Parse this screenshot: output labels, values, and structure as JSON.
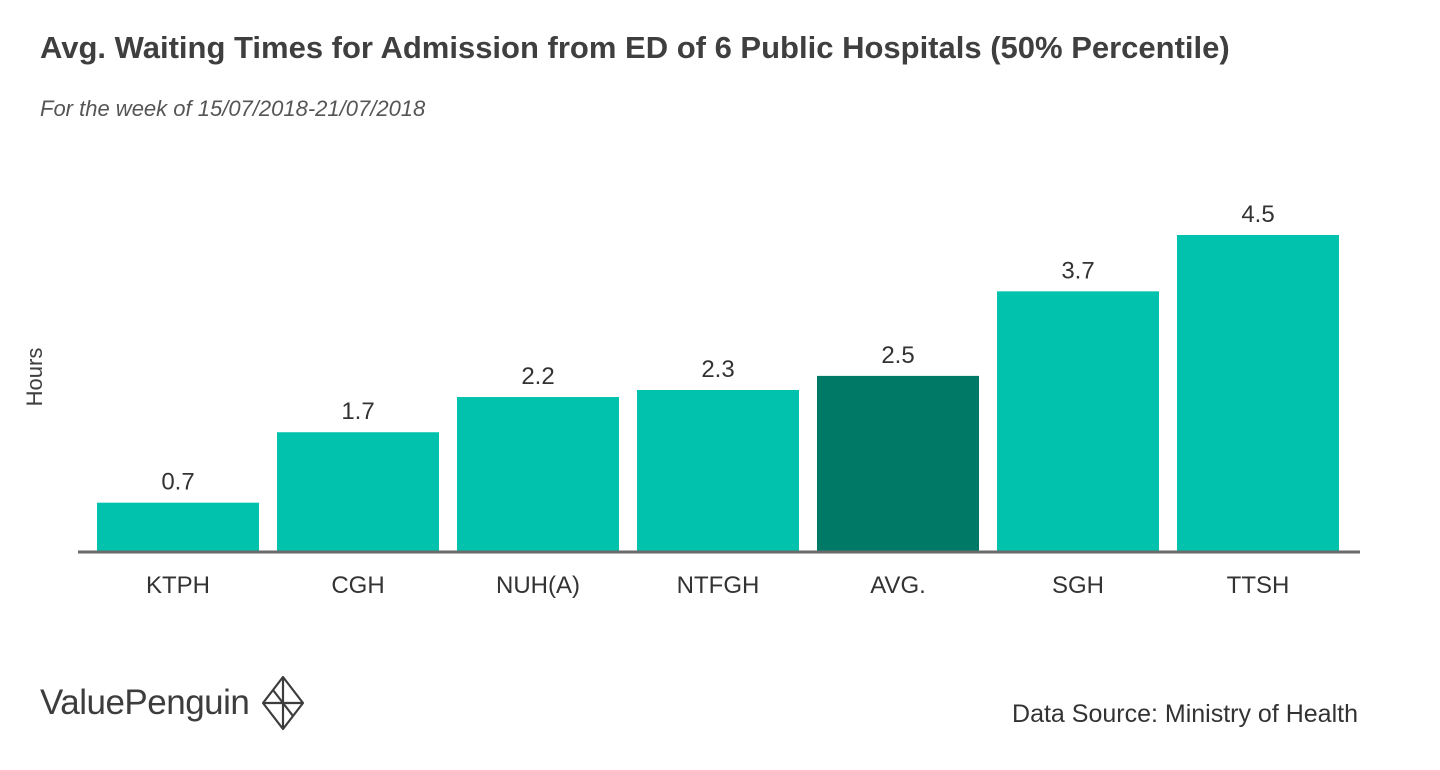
{
  "chart_data": {
    "type": "bar",
    "title": "Avg. Waiting Times for Admission from ED of 6 Public Hospitals (50% Percentile)",
    "subtitle": "For the week of 15/07/2018-21/07/2018",
    "ylabel": "Hours",
    "xlabel": "",
    "categories": [
      "KTPH",
      "CGH",
      "NUH(A)",
      "NTFGH",
      "AVG.",
      "SGH",
      "TTSH"
    ],
    "values": [
      0.7,
      1.7,
      2.2,
      2.3,
      2.5,
      3.7,
      4.5
    ],
    "value_labels": [
      "0.7",
      "1.7",
      "2.2",
      "2.3",
      "2.5",
      "3.7",
      "4.5"
    ],
    "ylim": [
      0,
      5
    ],
    "grid": false,
    "bar_color": "#00c2ad",
    "highlight_color": "#007a66",
    "highlight_category": "AVG."
  },
  "brand": {
    "name": "ValuePenguin",
    "icon": "penguin-logo-icon"
  },
  "source": "Data Source: Ministry of Health"
}
